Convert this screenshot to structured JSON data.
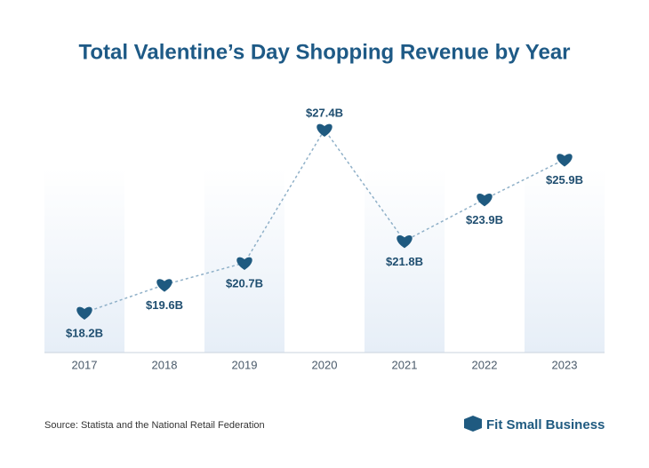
{
  "chart_data": {
    "type": "line",
    "title": "Total Valentine’s Day Shopping Revenue by Year",
    "categories": [
      "2017",
      "2018",
      "2019",
      "2020",
      "2021",
      "2022",
      "2023"
    ],
    "values": [
      18.2,
      19.6,
      20.7,
      27.4,
      21.8,
      23.9,
      25.9
    ],
    "value_labels": [
      "$18.2B",
      "$19.6B",
      "$20.7B",
      "$27.4B",
      "$21.8B",
      "$23.9B",
      "$25.9B"
    ],
    "color": "#1f5a80",
    "source": "Source: Statista and the National Retail Federation",
    "brand": "Fit Small Business"
  }
}
